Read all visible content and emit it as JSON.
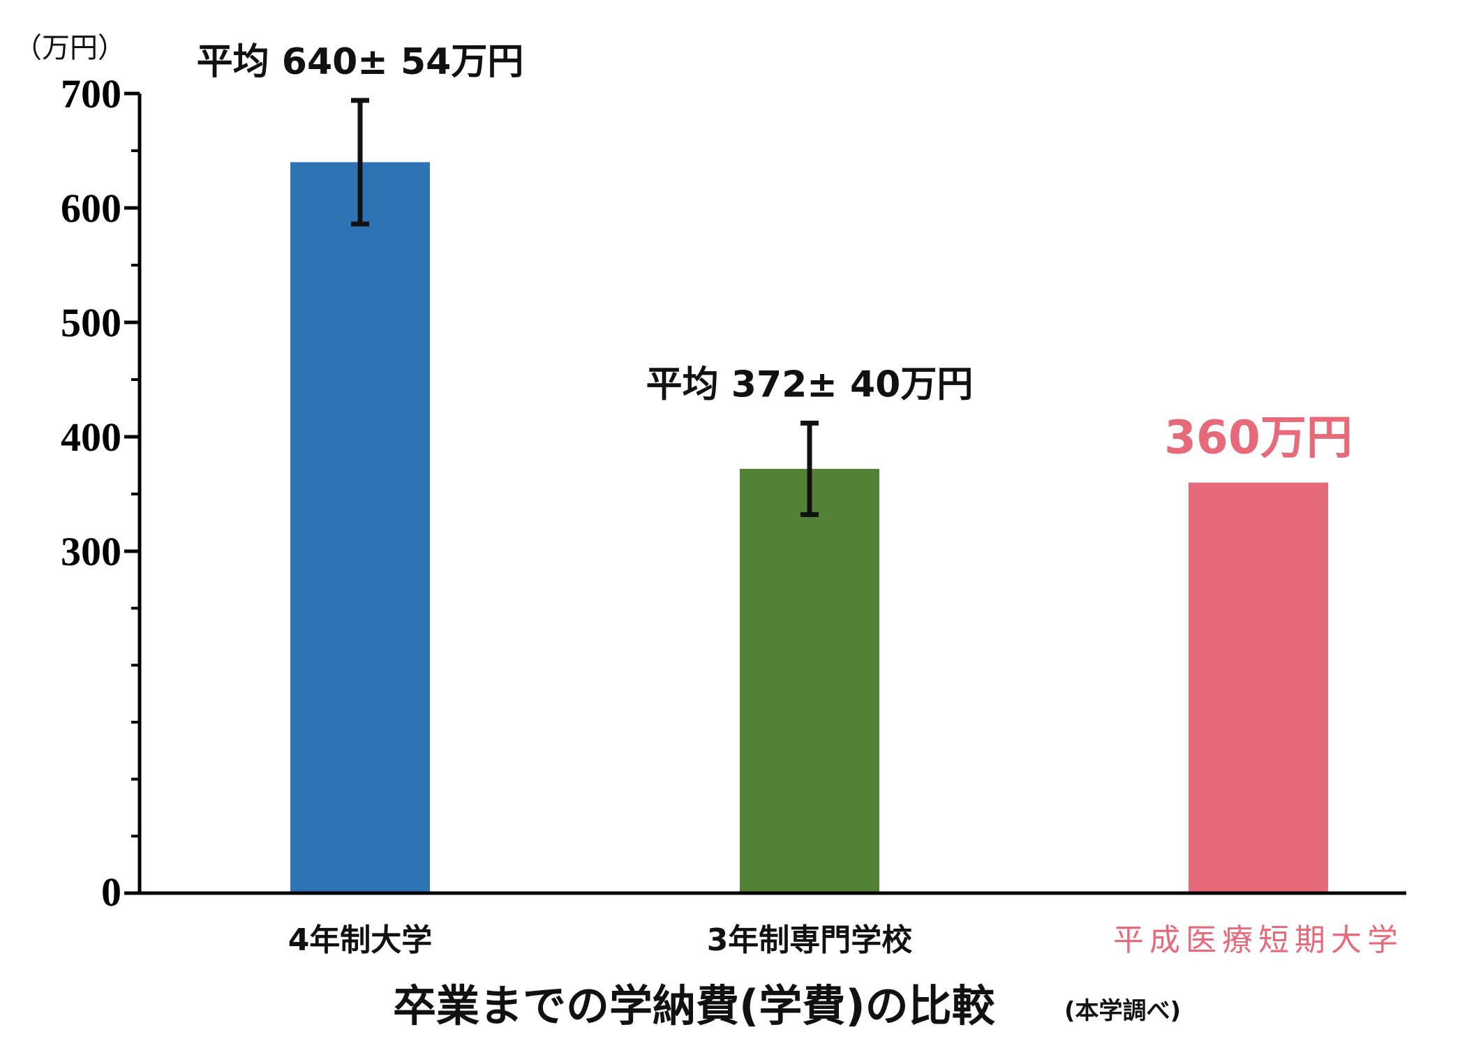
{
  "chart_data": {
    "type": "bar",
    "title": "卒業までの学納費(学費)の比較",
    "note": "(本学調べ)",
    "unit_label": "（万円）",
    "categories": [
      "4年制大学",
      "3年制専門学校",
      "平成医療短期大学"
    ],
    "values": [
      640,
      372,
      360
    ],
    "errors": [
      54,
      40,
      null
    ],
    "annotations": [
      "平均 640± 54万円",
      "平均 372± 40万円",
      "360万円"
    ],
    "colors": [
      "#2e74b5",
      "#538135",
      "#e66a7a"
    ],
    "highlight_color": "#e66a7a",
    "ylim": [
      0,
      700
    ],
    "y_tick_labels": [
      "0",
      "300",
      "400",
      "500",
      "600",
      "700"
    ],
    "y_minor_ticks": [
      50,
      100,
      150,
      200,
      250,
      350,
      450,
      550,
      650
    ],
    "grid": false,
    "legend": "none"
  }
}
